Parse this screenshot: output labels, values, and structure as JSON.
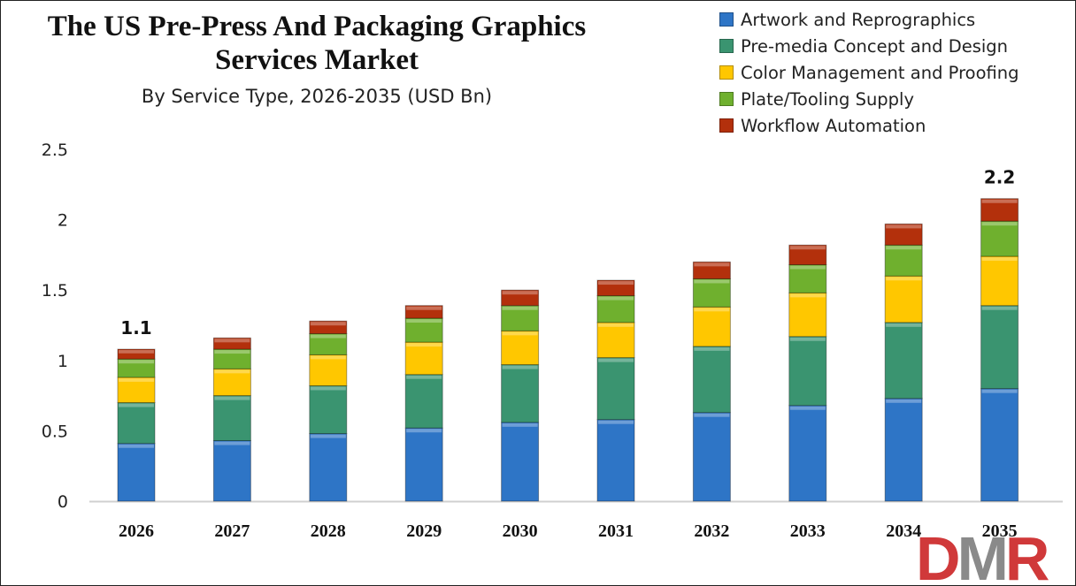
{
  "chart_data": {
    "type": "bar",
    "stacked": true,
    "title": "The US Pre-Press And Packaging Graphics Services Market",
    "subtitle": "By Service Type, 2026-2035 (USD Bn)",
    "xlabel": "",
    "ylabel": "",
    "ylim": [
      0,
      2.5
    ],
    "yticks": [
      "0",
      "0.5",
      "1",
      "1.5",
      "2",
      "2.5"
    ],
    "grid": false,
    "legend_position": "top-right",
    "categories": [
      "2026",
      "2027",
      "2028",
      "2029",
      "2030",
      "2031",
      "2032",
      "2033",
      "2034",
      "2035"
    ],
    "series": [
      {
        "name": "Artwork and Reprographics",
        "color": "#2e75c6",
        "values": [
          0.41,
          0.43,
          0.48,
          0.52,
          0.56,
          0.58,
          0.63,
          0.68,
          0.73,
          0.8
        ]
      },
      {
        "name": "Pre-media Concept and Design",
        "color": "#3a9470",
        "values": [
          0.29,
          0.32,
          0.34,
          0.38,
          0.41,
          0.44,
          0.47,
          0.49,
          0.54,
          0.59
        ]
      },
      {
        "name": "Color Management and Proofing",
        "color": "#ffc700",
        "values": [
          0.18,
          0.19,
          0.22,
          0.23,
          0.24,
          0.25,
          0.28,
          0.31,
          0.33,
          0.35
        ]
      },
      {
        "name": "Plate/Tooling Supply",
        "color": "#6fb02e",
        "values": [
          0.13,
          0.14,
          0.15,
          0.17,
          0.18,
          0.19,
          0.2,
          0.2,
          0.22,
          0.25
        ]
      },
      {
        "name": "Workflow Automation",
        "color": "#b3300c",
        "values": [
          0.07,
          0.08,
          0.09,
          0.09,
          0.11,
          0.11,
          0.12,
          0.14,
          0.15,
          0.16
        ]
      }
    ],
    "data_labels": [
      {
        "category": "2026",
        "text": "1.1"
      },
      {
        "category": "2035",
        "text": "2.2"
      }
    ]
  },
  "logo": {
    "text": "DMR",
    "colors": [
      "#d0393a",
      "#8a8a8a",
      "#d0393a"
    ]
  }
}
